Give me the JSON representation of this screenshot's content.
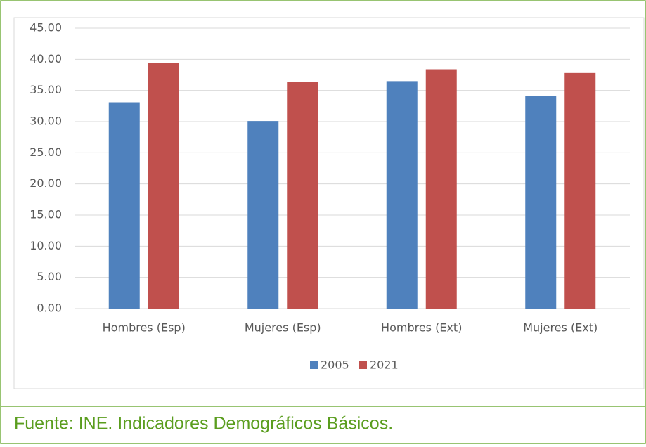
{
  "chart_data": {
    "type": "bar",
    "categories": [
      "Hombres (Esp)",
      "Mujeres (Esp)",
      "Hombres (Ext)",
      "Mujeres (Ext)"
    ],
    "series": [
      {
        "name": "2005",
        "color": "#4f81bd",
        "values": [
          33.1,
          30.1,
          36.5,
          34.1
        ]
      },
      {
        "name": "2021",
        "color": "#c0504d",
        "values": [
          39.4,
          36.4,
          38.4,
          37.8
        ]
      }
    ],
    "ylim": [
      0,
      45
    ],
    "yticks": [
      {
        "value": 0,
        "label": "0.00"
      },
      {
        "value": 5,
        "label": "5.00"
      },
      {
        "value": 10,
        "label": "10.00"
      },
      {
        "value": 15,
        "label": "15.00"
      },
      {
        "value": 20,
        "label": "20.00"
      },
      {
        "value": 25,
        "label": "25.00"
      },
      {
        "value": 30,
        "label": "30.00"
      },
      {
        "value": 35,
        "label": "35.00"
      },
      {
        "value": 40,
        "label": "40.00"
      },
      {
        "value": 45,
        "label": "45.00"
      }
    ],
    "grid": true,
    "legend": "bottom"
  },
  "caption": "Fuente: INE. Indicadores Demográficos Básicos."
}
